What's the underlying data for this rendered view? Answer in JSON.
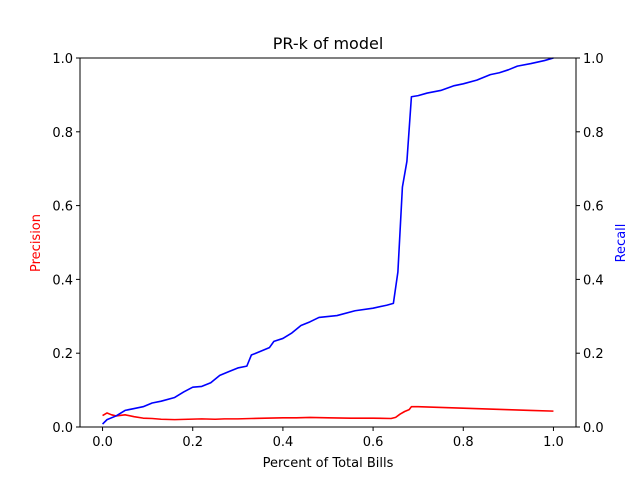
{
  "chart_data": {
    "type": "line",
    "title": "PR-k of model",
    "xlabel": "Percent of Total Bills",
    "ylabel_left": "Precision",
    "ylabel_right": "Recall",
    "xlim": [
      -0.05,
      1.05
    ],
    "ylim_left": [
      0,
      1
    ],
    "ylim_right": [
      0,
      1
    ],
    "xticks": [
      "0.0",
      "0.2",
      "0.4",
      "0.6",
      "0.8",
      "1.0"
    ],
    "yticks_left": [
      "0.0",
      "0.2",
      "0.4",
      "0.6",
      "0.8",
      "1.0"
    ],
    "yticks_right": [
      "0.0",
      "0.2",
      "0.4",
      "0.6",
      "0.8",
      "1.0"
    ],
    "grid": false,
    "colors": {
      "precision": "#ff0000",
      "recall": "#0000ff",
      "axes": "#000000"
    },
    "series": [
      {
        "key": "precision",
        "axis": "left",
        "color": "#ff0000",
        "points": [
          [
            0.0,
            0.031
          ],
          [
            0.01,
            0.038
          ],
          [
            0.02,
            0.033
          ],
          [
            0.03,
            0.03
          ],
          [
            0.05,
            0.033
          ],
          [
            0.07,
            0.028
          ],
          [
            0.09,
            0.024
          ],
          [
            0.11,
            0.023
          ],
          [
            0.13,
            0.021
          ],
          [
            0.16,
            0.02
          ],
          [
            0.19,
            0.021
          ],
          [
            0.22,
            0.022
          ],
          [
            0.25,
            0.021
          ],
          [
            0.27,
            0.022
          ],
          [
            0.3,
            0.022
          ],
          [
            0.33,
            0.023
          ],
          [
            0.36,
            0.024
          ],
          [
            0.4,
            0.025
          ],
          [
            0.43,
            0.025
          ],
          [
            0.46,
            0.026
          ],
          [
            0.5,
            0.025
          ],
          [
            0.55,
            0.024
          ],
          [
            0.6,
            0.024
          ],
          [
            0.64,
            0.023
          ],
          [
            0.65,
            0.026
          ],
          [
            0.66,
            0.035
          ],
          [
            0.67,
            0.042
          ],
          [
            0.68,
            0.047
          ],
          [
            0.685,
            0.055
          ],
          [
            0.7,
            0.055
          ],
          [
            0.75,
            0.053
          ],
          [
            0.8,
            0.051
          ],
          [
            0.85,
            0.049
          ],
          [
            0.9,
            0.047
          ],
          [
            0.95,
            0.045
          ],
          [
            1.0,
            0.043
          ]
        ]
      },
      {
        "key": "recall",
        "axis": "right",
        "color": "#0000ff",
        "points": [
          [
            0.0,
            0.008
          ],
          [
            0.01,
            0.02
          ],
          [
            0.03,
            0.03
          ],
          [
            0.05,
            0.045
          ],
          [
            0.07,
            0.05
          ],
          [
            0.09,
            0.055
          ],
          [
            0.11,
            0.065
          ],
          [
            0.13,
            0.07
          ],
          [
            0.16,
            0.08
          ],
          [
            0.18,
            0.095
          ],
          [
            0.2,
            0.108
          ],
          [
            0.22,
            0.11
          ],
          [
            0.24,
            0.12
          ],
          [
            0.26,
            0.14
          ],
          [
            0.28,
            0.15
          ],
          [
            0.3,
            0.16
          ],
          [
            0.32,
            0.165
          ],
          [
            0.33,
            0.195
          ],
          [
            0.35,
            0.205
          ],
          [
            0.37,
            0.215
          ],
          [
            0.38,
            0.232
          ],
          [
            0.4,
            0.24
          ],
          [
            0.42,
            0.255
          ],
          [
            0.44,
            0.275
          ],
          [
            0.46,
            0.285
          ],
          [
            0.48,
            0.297
          ],
          [
            0.52,
            0.302
          ],
          [
            0.56,
            0.315
          ],
          [
            0.6,
            0.322
          ],
          [
            0.63,
            0.33
          ],
          [
            0.645,
            0.335
          ],
          [
            0.655,
            0.42
          ],
          [
            0.665,
            0.65
          ],
          [
            0.675,
            0.72
          ],
          [
            0.685,
            0.895
          ],
          [
            0.7,
            0.898
          ],
          [
            0.72,
            0.905
          ],
          [
            0.75,
            0.912
          ],
          [
            0.78,
            0.925
          ],
          [
            0.8,
            0.93
          ],
          [
            0.83,
            0.94
          ],
          [
            0.86,
            0.955
          ],
          [
            0.88,
            0.96
          ],
          [
            0.9,
            0.968
          ],
          [
            0.92,
            0.978
          ],
          [
            0.95,
            0.985
          ],
          [
            0.98,
            0.993
          ],
          [
            1.0,
            1.0
          ]
        ]
      }
    ]
  }
}
